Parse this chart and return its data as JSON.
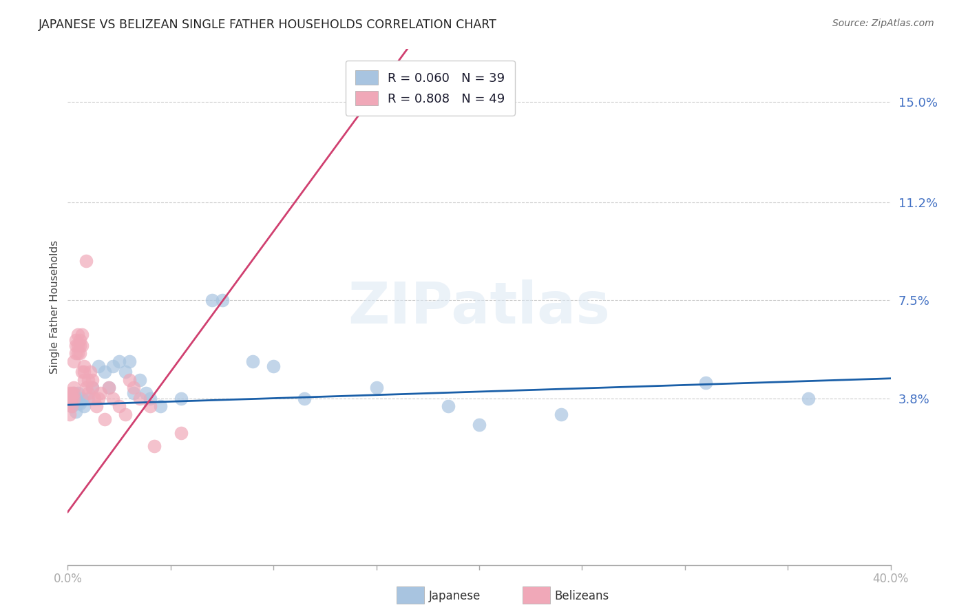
{
  "title": "JAPANESE VS BELIZEAN SINGLE FATHER HOUSEHOLDS CORRELATION CHART",
  "source": "Source: ZipAtlas.com",
  "ylabel": "Single Father Households",
  "ytick_labels": [
    "15.0%",
    "11.2%",
    "7.5%",
    "3.8%"
  ],
  "ytick_values": [
    0.15,
    0.112,
    0.075,
    0.038
  ],
  "xlim": [
    0.0,
    0.4
  ],
  "ylim": [
    -0.025,
    0.17
  ],
  "watermark_text": "ZIPatlas",
  "japanese_color": "#a8c4e0",
  "belizean_color": "#f0a8b8",
  "japanese_line_color": "#1a5fa8",
  "belizean_line_color": "#d04070",
  "japanese_scatter": [
    [
      0.001,
      0.038
    ],
    [
      0.001,
      0.036
    ],
    [
      0.002,
      0.035
    ],
    [
      0.002,
      0.038
    ],
    [
      0.003,
      0.036
    ],
    [
      0.003,
      0.04
    ],
    [
      0.004,
      0.033
    ],
    [
      0.004,
      0.038
    ],
    [
      0.005,
      0.04
    ],
    [
      0.005,
      0.036
    ],
    [
      0.006,
      0.036
    ],
    [
      0.007,
      0.038
    ],
    [
      0.008,
      0.035
    ],
    [
      0.01,
      0.038
    ],
    [
      0.012,
      0.042
    ],
    [
      0.015,
      0.05
    ],
    [
      0.018,
      0.048
    ],
    [
      0.02,
      0.042
    ],
    [
      0.022,
      0.05
    ],
    [
      0.025,
      0.052
    ],
    [
      0.028,
      0.048
    ],
    [
      0.03,
      0.052
    ],
    [
      0.032,
      0.04
    ],
    [
      0.035,
      0.045
    ],
    [
      0.038,
      0.04
    ],
    [
      0.04,
      0.038
    ],
    [
      0.045,
      0.035
    ],
    [
      0.055,
      0.038
    ],
    [
      0.07,
      0.075
    ],
    [
      0.075,
      0.075
    ],
    [
      0.09,
      0.052
    ],
    [
      0.1,
      0.05
    ],
    [
      0.115,
      0.038
    ],
    [
      0.15,
      0.042
    ],
    [
      0.185,
      0.035
    ],
    [
      0.2,
      0.028
    ],
    [
      0.24,
      0.032
    ],
    [
      0.31,
      0.044
    ],
    [
      0.36,
      0.038
    ]
  ],
  "belizean_scatter": [
    [
      0.001,
      0.038
    ],
    [
      0.001,
      0.04
    ],
    [
      0.001,
      0.036
    ],
    [
      0.001,
      0.032
    ],
    [
      0.002,
      0.038
    ],
    [
      0.002,
      0.035
    ],
    [
      0.002,
      0.04
    ],
    [
      0.002,
      0.038
    ],
    [
      0.003,
      0.042
    ],
    [
      0.003,
      0.038
    ],
    [
      0.003,
      0.04
    ],
    [
      0.003,
      0.052
    ],
    [
      0.004,
      0.058
    ],
    [
      0.004,
      0.06
    ],
    [
      0.004,
      0.055
    ],
    [
      0.005,
      0.062
    ],
    [
      0.005,
      0.058
    ],
    [
      0.005,
      0.055
    ],
    [
      0.006,
      0.058
    ],
    [
      0.006,
      0.055
    ],
    [
      0.006,
      0.06
    ],
    [
      0.007,
      0.062
    ],
    [
      0.007,
      0.058
    ],
    [
      0.007,
      0.048
    ],
    [
      0.008,
      0.05
    ],
    [
      0.008,
      0.045
    ],
    [
      0.008,
      0.048
    ],
    [
      0.009,
      0.042
    ],
    [
      0.009,
      0.09
    ],
    [
      0.01,
      0.045
    ],
    [
      0.01,
      0.04
    ],
    [
      0.011,
      0.048
    ],
    [
      0.012,
      0.045
    ],
    [
      0.012,
      0.042
    ],
    [
      0.013,
      0.038
    ],
    [
      0.014,
      0.035
    ],
    [
      0.015,
      0.038
    ],
    [
      0.016,
      0.04
    ],
    [
      0.018,
      0.03
    ],
    [
      0.02,
      0.042
    ],
    [
      0.022,
      0.038
    ],
    [
      0.025,
      0.035
    ],
    [
      0.028,
      0.032
    ],
    [
      0.03,
      0.045
    ],
    [
      0.032,
      0.042
    ],
    [
      0.035,
      0.038
    ],
    [
      0.04,
      0.035
    ],
    [
      0.042,
      0.02
    ],
    [
      0.055,
      0.025
    ]
  ],
  "japanese_regression": {
    "x_start": 0.0,
    "x_end": 0.4,
    "y_start": 0.0355,
    "y_end": 0.0455
  },
  "belizean_regression": {
    "x_start": 0.0,
    "x_end": 0.165,
    "y_start": -0.005,
    "y_end": 0.17
  },
  "xtick_positions": [
    0.0,
    0.05,
    0.1,
    0.15,
    0.2,
    0.25,
    0.3,
    0.35,
    0.4
  ],
  "legend_r_jp": "R = 0.060",
  "legend_n_jp": "N = 39",
  "legend_r_bz": "R = 0.808",
  "legend_n_bz": "N = 49"
}
